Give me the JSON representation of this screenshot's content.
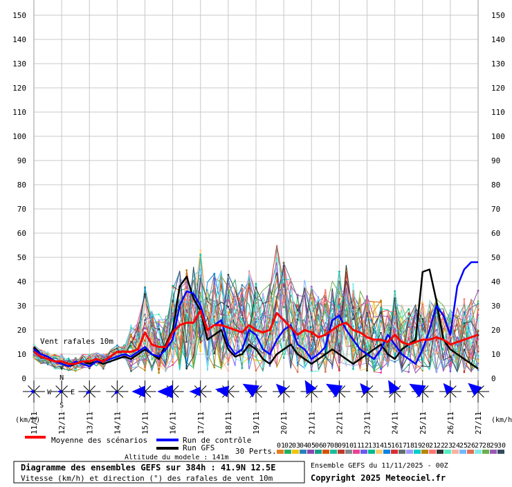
{
  "chart_data": {
    "type": "line",
    "ylim": [
      0,
      150
    ],
    "yticks": [
      0,
      10,
      20,
      30,
      40,
      50,
      60,
      70,
      80,
      90,
      100,
      110,
      120,
      130,
      140,
      150
    ],
    "y_unit_left": "(km/h)",
    "y_unit_right": "(km/h)",
    "x_dates": [
      "11/11",
      "12/11",
      "13/11",
      "14/11",
      "15/11",
      "16/11",
      "17/11",
      "18/11",
      "19/11",
      "20/11",
      "21/11",
      "22/11",
      "23/11",
      "24/11",
      "25/11",
      "26/11",
      "27/11"
    ],
    "x_steps": [
      0,
      6,
      12,
      18,
      24,
      30,
      36,
      42,
      48,
      54,
      60,
      66,
      72,
      78,
      84,
      90,
      96,
      102,
      108,
      114,
      120,
      126,
      132,
      138,
      144,
      150,
      156,
      162,
      168,
      174,
      180,
      186,
      192,
      198,
      204,
      210,
      216,
      222,
      228,
      234,
      240,
      246,
      252,
      258,
      264,
      270,
      276,
      282,
      288,
      294,
      300,
      306,
      312,
      318,
      324,
      330,
      336,
      342,
      348,
      354,
      360,
      366,
      372,
      378,
      384
    ],
    "plot_label": "Vent rafales 10m",
    "series": [
      {
        "name": "Moyenne des scénarios",
        "color": "#ff0000",
        "values": [
          11,
          9,
          8,
          7,
          7,
          6,
          6,
          7,
          7,
          8,
          7,
          9,
          11,
          11,
          11,
          12,
          19,
          14,
          13,
          13,
          19,
          22,
          23,
          23,
          28,
          20,
          22,
          22,
          21,
          20,
          19,
          22,
          20,
          19,
          20,
          27,
          24,
          21,
          18,
          20,
          19,
          17,
          18,
          20,
          22,
          23,
          20,
          19,
          17,
          16,
          16,
          15,
          18,
          15,
          14,
          15,
          16,
          16,
          17,
          16,
          14,
          15,
          16,
          17,
          18
        ]
      },
      {
        "name": "Run de contrôle",
        "color": "#0000ff",
        "values": [
          12,
          10,
          9,
          7,
          6,
          5,
          7,
          6,
          5,
          7,
          7,
          8,
          9,
          10,
          9,
          11,
          13,
          10,
          9,
          12,
          16,
          30,
          36,
          35,
          30,
          20,
          22,
          24,
          14,
          10,
          12,
          20,
          18,
          12,
          10,
          16,
          20,
          22,
          14,
          12,
          8,
          10,
          13,
          24,
          26,
          20,
          16,
          12,
          10,
          8,
          12,
          18,
          14,
          10,
          8,
          6,
          12,
          20,
          30,
          26,
          18,
          38,
          45,
          48,
          48
        ]
      },
      {
        "name": "Run GFS",
        "color": "#000000",
        "values": [
          13,
          10,
          9,
          7,
          6,
          5,
          6,
          7,
          6,
          7,
          6,
          7,
          8,
          9,
          8,
          10,
          12,
          10,
          8,
          14,
          20,
          38,
          42,
          33,
          28,
          16,
          18,
          20,
          12,
          9,
          10,
          14,
          12,
          8,
          6,
          10,
          12,
          14,
          10,
          8,
          6,
          8,
          10,
          12,
          10,
          8,
          6,
          8,
          10,
          12,
          14,
          10,
          8,
          12,
          14,
          16,
          44,
          45,
          32,
          16,
          12,
          10,
          8,
          6,
          4
        ]
      }
    ],
    "perturbations": {
      "label": "30 Perts.",
      "numbers": [
        "01",
        "02",
        "03",
        "04",
        "05",
        "06",
        "07",
        "08",
        "09",
        "10",
        "11",
        "12",
        "13",
        "14",
        "15",
        "16",
        "17",
        "18",
        "19",
        "20",
        "21",
        "22",
        "23",
        "24",
        "25",
        "26",
        "27",
        "28",
        "29",
        "30"
      ],
      "colors": [
        "#e67e22",
        "#27ae60",
        "#f1c40f",
        "#2980b9",
        "#8e44ad",
        "#16a085",
        "#d35400",
        "#1abc9c",
        "#c0392b",
        "#7f8c8d",
        "#e84393",
        "#6c5ce7",
        "#00b894",
        "#fdcb6e",
        "#0984e3",
        "#d63031",
        "#636e72",
        "#a29bfe",
        "#00cec9",
        "#b8860b",
        "#ff7675",
        "#2d3436",
        "#55efc4",
        "#fab1a0",
        "#74b9ff",
        "#e17055",
        "#81ecec",
        "#6ab04c",
        "#9b59b6",
        "#34495e"
      ]
    },
    "wind_compass_labels": {
      "n": "N",
      "s": "S",
      "w": "W",
      "e": "E"
    },
    "wind_directions_deg": [
      270,
      270,
      240,
      225,
      270,
      270,
      270,
      280,
      300,
      315,
      330,
      300,
      320,
      330,
      300,
      320,
      310,
      330,
      290,
      300
    ],
    "legend": [
      {
        "label": "Moyenne des scénarios",
        "color": "#ff0000"
      },
      {
        "label": "Run de contrôle",
        "color": "#0000ff"
      },
      {
        "label": "Run GFS",
        "color": "#000000"
      }
    ],
    "model_altitude": "Altitude du modele : 141m",
    "info_title": "Diagramme des ensembles GEFS sur 384h : 41.9N 12.5E",
    "info_subtitle": "Vitesse (km/h) et direction (°) des rafales de vent 10m",
    "ensemble_run": "Ensemble GEFS du 11/11/2025 - 00Z",
    "copyright": "Copyright 2025 Meteociel.fr"
  }
}
